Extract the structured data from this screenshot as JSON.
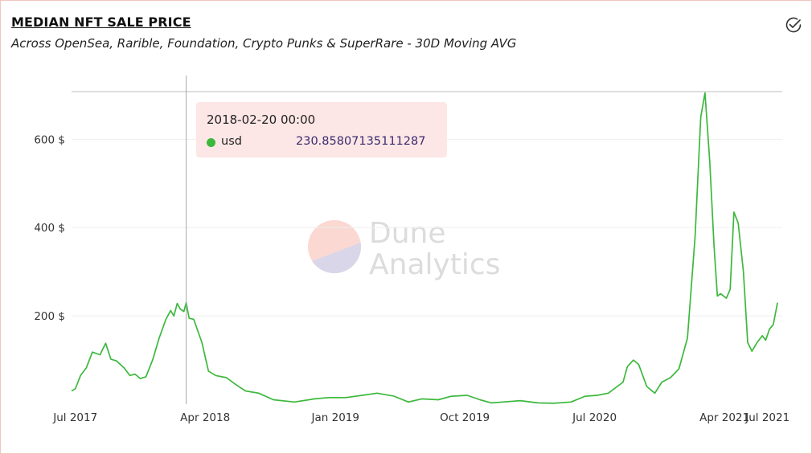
{
  "header": {
    "title": "MEDIAN NFT SALE PRICE",
    "subtitle": "Across OpenSea, Rarible, Foundation, Crypto Punks & SuperRare - 30D Moving AVG"
  },
  "icons": {
    "status": "check-circle-icon"
  },
  "tooltip": {
    "time": "2018-02-20 00:00",
    "series_name": "usd",
    "value": "230.85807135111287"
  },
  "watermark": {
    "line1": "Dune",
    "line2": "Analytics"
  },
  "colors": {
    "series": "#3cb83c",
    "tooltip_bg": "#fde7e6",
    "border": "#f1c6bf"
  },
  "chart_data": {
    "type": "line",
    "x_axis_type": "date",
    "x_ticks": [
      {
        "label": "Jul 2017",
        "date": "2017-07-01"
      },
      {
        "label": "Apr 2018",
        "date": "2018-04-01"
      },
      {
        "label": "Jan 2019",
        "date": "2019-01-01"
      },
      {
        "label": "Oct 2019",
        "date": "2019-10-01"
      },
      {
        "label": "Jul 2020",
        "date": "2020-07-01"
      },
      {
        "label": "Apr 2021",
        "date": "2021-04-01"
      },
      {
        "label": "Jul 2021",
        "date": "2021-07-01"
      }
    ],
    "y_ticks": [
      {
        "label": "200 $",
        "value": 200
      },
      {
        "label": "400 $",
        "value": 400
      },
      {
        "label": "600 $",
        "value": 600
      }
    ],
    "ylim": [
      0,
      708
    ],
    "xlim": [
      "2017-06-23",
      "2021-08-01"
    ],
    "grid": true,
    "crosshair_date": "2018-02-20",
    "series": [
      {
        "name": "usd",
        "points": [
          [
            "2017-06-23",
            30
          ],
          [
            "2017-07-01",
            35
          ],
          [
            "2017-07-12",
            65
          ],
          [
            "2017-07-24",
            82
          ],
          [
            "2017-08-06",
            118
          ],
          [
            "2017-08-22",
            112
          ],
          [
            "2017-09-03",
            138
          ],
          [
            "2017-09-14",
            102
          ],
          [
            "2017-09-26",
            98
          ],
          [
            "2017-10-12",
            82
          ],
          [
            "2017-10-24",
            65
          ],
          [
            "2017-11-04",
            68
          ],
          [
            "2017-11-15",
            58
          ],
          [
            "2017-11-27",
            62
          ],
          [
            "2017-12-11",
            100
          ],
          [
            "2017-12-25",
            150
          ],
          [
            "2018-01-08",
            192
          ],
          [
            "2018-01-18",
            212
          ],
          [
            "2018-01-25",
            200
          ],
          [
            "2018-02-01",
            228
          ],
          [
            "2018-02-08",
            215
          ],
          [
            "2018-02-15",
            210
          ],
          [
            "2018-02-20",
            230
          ],
          [
            "2018-02-26",
            195
          ],
          [
            "2018-03-08",
            192
          ],
          [
            "2018-03-25",
            140
          ],
          [
            "2018-04-08",
            75
          ],
          [
            "2018-04-23",
            65
          ],
          [
            "2018-05-16",
            60
          ],
          [
            "2018-06-04",
            45
          ],
          [
            "2018-06-25",
            30
          ],
          [
            "2018-07-23",
            25
          ],
          [
            "2018-08-23",
            10
          ],
          [
            "2018-10-06",
            5
          ],
          [
            "2018-11-18",
            12
          ],
          [
            "2018-12-17",
            15
          ],
          [
            "2019-01-23",
            15
          ],
          [
            "2019-02-26",
            20
          ],
          [
            "2019-03-30",
            25
          ],
          [
            "2019-05-05",
            18
          ],
          [
            "2019-06-04",
            5
          ],
          [
            "2019-07-02",
            12
          ],
          [
            "2019-08-06",
            10
          ],
          [
            "2019-09-03",
            18
          ],
          [
            "2019-10-06",
            20
          ],
          [
            "2019-11-02",
            10
          ],
          [
            "2019-11-26",
            3
          ],
          [
            "2019-12-20",
            5
          ],
          [
            "2020-01-26",
            8
          ],
          [
            "2020-03-03",
            3
          ],
          [
            "2020-04-05",
            2
          ],
          [
            "2020-05-12",
            5
          ],
          [
            "2020-06-11",
            18
          ],
          [
            "2020-07-06",
            20
          ],
          [
            "2020-07-30",
            25
          ],
          [
            "2020-08-30",
            50
          ],
          [
            "2020-09-08",
            85
          ],
          [
            "2020-09-21",
            100
          ],
          [
            "2020-10-02",
            90
          ],
          [
            "2020-10-19",
            40
          ],
          [
            "2020-11-05",
            25
          ],
          [
            "2020-11-20",
            50
          ],
          [
            "2020-12-08",
            60
          ],
          [
            "2020-12-26",
            80
          ],
          [
            "2021-01-13",
            150
          ],
          [
            "2021-01-29",
            380
          ],
          [
            "2021-02-10",
            650
          ],
          [
            "2021-02-19",
            705
          ],
          [
            "2021-03-01",
            550
          ],
          [
            "2021-03-10",
            360
          ],
          [
            "2021-03-17",
            245
          ],
          [
            "2021-03-24",
            250
          ],
          [
            "2021-04-05",
            240
          ],
          [
            "2021-04-13",
            260
          ],
          [
            "2021-04-21",
            435
          ],
          [
            "2021-04-30",
            410
          ],
          [
            "2021-05-11",
            300
          ],
          [
            "2021-05-20",
            140
          ],
          [
            "2021-05-29",
            120
          ],
          [
            "2021-06-09",
            140
          ],
          [
            "2021-06-20",
            155
          ],
          [
            "2021-06-27",
            145
          ],
          [
            "2021-07-05",
            170
          ],
          [
            "2021-07-13",
            180
          ],
          [
            "2021-07-22",
            230
          ]
        ]
      }
    ]
  }
}
